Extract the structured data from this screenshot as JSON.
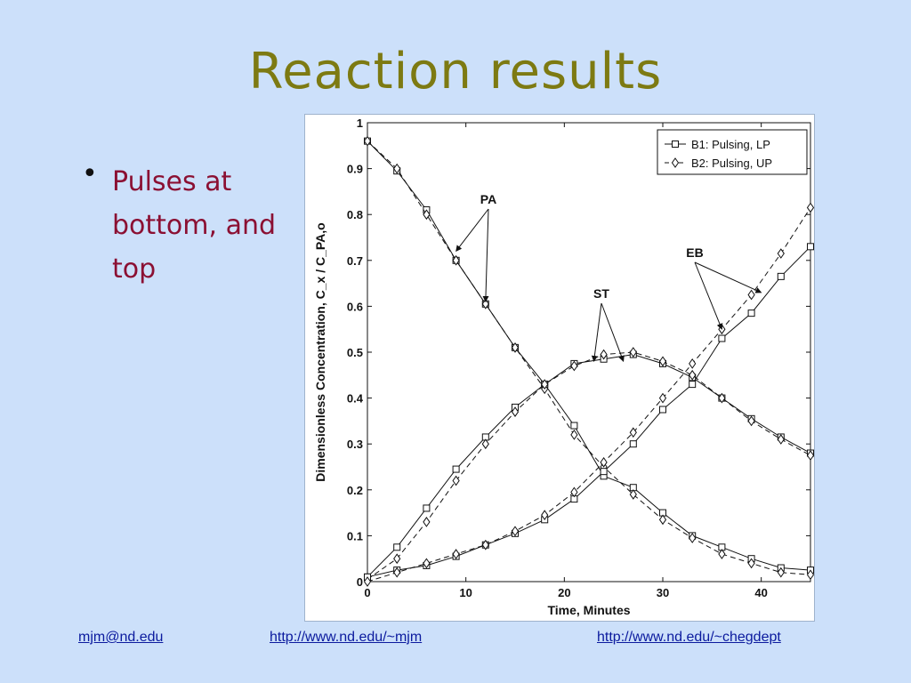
{
  "slide": {
    "title": "Reaction results",
    "bullets": [
      "Pulses at bottom, and top"
    ]
  },
  "footer": {
    "email": "mjm@nd.edu",
    "url1": "http://www.nd.edu/~mjm",
    "url2": "http://www.nd.edu/~chegdept"
  },
  "chart_data": {
    "type": "line",
    "xlabel": "Time, Minutes",
    "ylabel": "Dimensionless Concentration, C_x / C_PA,o",
    "xlim": [
      0,
      45
    ],
    "ylim": [
      0,
      1
    ],
    "xticks": [
      0,
      10,
      20,
      30,
      40
    ],
    "yticks": [
      0,
      0.1,
      0.2,
      0.3,
      0.4,
      0.5,
      0.6,
      0.7,
      0.8,
      0.9,
      1
    ],
    "grid": false,
    "legend_position": "top-right",
    "legend": [
      "B1: Pulsing, LP",
      "B2: Pulsing, UP"
    ],
    "annotations": [
      {
        "text": "PA",
        "targets": [
          [
            9,
            0.72
          ],
          [
            12,
            0.61
          ]
        ]
      },
      {
        "text": "ST",
        "targets": [
          [
            23,
            0.48
          ],
          [
            26,
            0.48
          ]
        ]
      },
      {
        "text": "EB",
        "targets": [
          [
            36,
            0.55
          ],
          [
            40,
            0.63
          ]
        ]
      }
    ],
    "series": [
      {
        "name": "B1: Pulsing, LP",
        "species": "PA",
        "style": "solid",
        "marker": "square",
        "x": [
          0,
          3,
          6,
          9,
          12,
          15,
          18,
          21,
          24,
          27,
          30,
          33,
          36,
          39,
          42,
          45
        ],
        "y": [
          0.96,
          0.895,
          0.81,
          0.7,
          0.605,
          0.51,
          0.43,
          0.34,
          0.23,
          0.205,
          0.15,
          0.1,
          0.075,
          0.05,
          0.03,
          0.025
        ]
      },
      {
        "name": "B2: Pulsing, UP",
        "species": "PA",
        "style": "dashed",
        "marker": "diamond",
        "x": [
          0,
          3,
          6,
          9,
          12,
          15,
          18,
          21,
          24,
          27,
          30,
          33,
          36,
          39,
          42,
          45
        ],
        "y": [
          0.96,
          0.9,
          0.8,
          0.7,
          0.605,
          0.51,
          0.42,
          0.32,
          0.25,
          0.19,
          0.135,
          0.095,
          0.06,
          0.04,
          0.02,
          0.015
        ]
      },
      {
        "name": "B1: Pulsing, LP",
        "species": "ST",
        "style": "solid",
        "marker": "square",
        "x": [
          0,
          3,
          6,
          9,
          12,
          15,
          18,
          21,
          24,
          27,
          30,
          33,
          36,
          39,
          42,
          45
        ],
        "y": [
          0.01,
          0.075,
          0.16,
          0.245,
          0.315,
          0.38,
          0.43,
          0.475,
          0.485,
          0.495,
          0.475,
          0.445,
          0.4,
          0.355,
          0.315,
          0.28
        ]
      },
      {
        "name": "B2: Pulsing, UP",
        "species": "ST",
        "style": "dashed",
        "marker": "diamond",
        "x": [
          0,
          3,
          6,
          9,
          12,
          15,
          18,
          21,
          24,
          27,
          30,
          33,
          36,
          39,
          42,
          45
        ],
        "y": [
          0.005,
          0.05,
          0.13,
          0.22,
          0.3,
          0.37,
          0.43,
          0.47,
          0.495,
          0.5,
          0.48,
          0.45,
          0.4,
          0.35,
          0.31,
          0.275
        ]
      },
      {
        "name": "B1: Pulsing, LP",
        "species": "EB",
        "style": "solid",
        "marker": "square",
        "x": [
          0,
          3,
          6,
          9,
          12,
          15,
          18,
          21,
          24,
          27,
          30,
          33,
          36,
          39,
          42,
          45
        ],
        "y": [
          0.01,
          0.025,
          0.035,
          0.055,
          0.08,
          0.105,
          0.135,
          0.18,
          0.24,
          0.3,
          0.375,
          0.43,
          0.53,
          0.585,
          0.665,
          0.73
        ]
      },
      {
        "name": "B2: Pulsing, UP",
        "species": "EB",
        "style": "dashed",
        "marker": "diamond",
        "x": [
          0,
          3,
          6,
          9,
          12,
          15,
          18,
          21,
          24,
          27,
          30,
          33,
          36,
          39,
          42,
          45
        ],
        "y": [
          0.0,
          0.02,
          0.04,
          0.06,
          0.08,
          0.11,
          0.145,
          0.195,
          0.26,
          0.325,
          0.4,
          0.475,
          0.55,
          0.625,
          0.715,
          0.815
        ]
      }
    ]
  }
}
